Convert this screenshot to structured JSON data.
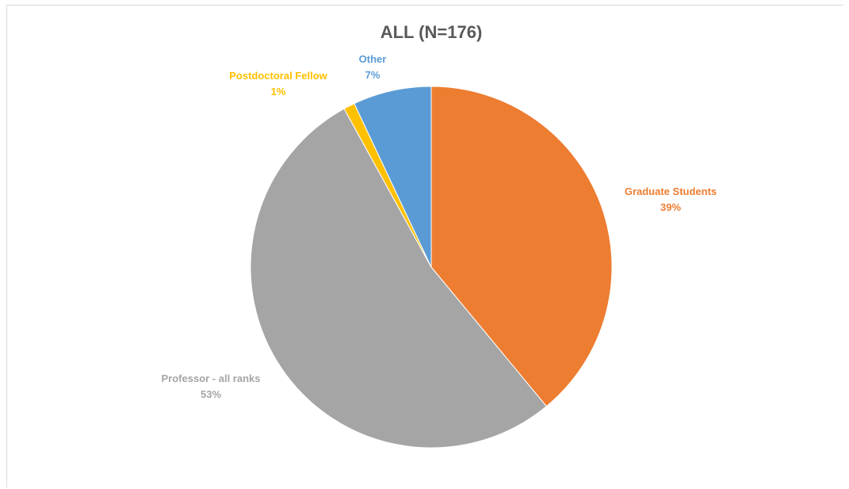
{
  "chart_data": {
    "type": "pie",
    "title": "ALL (N=176)",
    "start_angle_deg": 0,
    "direction": "clockwise",
    "legend": "none",
    "slices": [
      {
        "label": "Graduate Students",
        "value": 39,
        "value_label": "39%",
        "color": "#ED7D31"
      },
      {
        "label": "Professor - all ranks",
        "value": 53,
        "value_label": "53%",
        "color": "#A5A5A5"
      },
      {
        "label": "Postdoctoral Fellow",
        "value": 1,
        "value_label": "1%",
        "color": "#FFC000"
      },
      {
        "label": "Other",
        "value": 7,
        "value_label": "7%",
        "color": "#5B9BD5"
      }
    ]
  }
}
